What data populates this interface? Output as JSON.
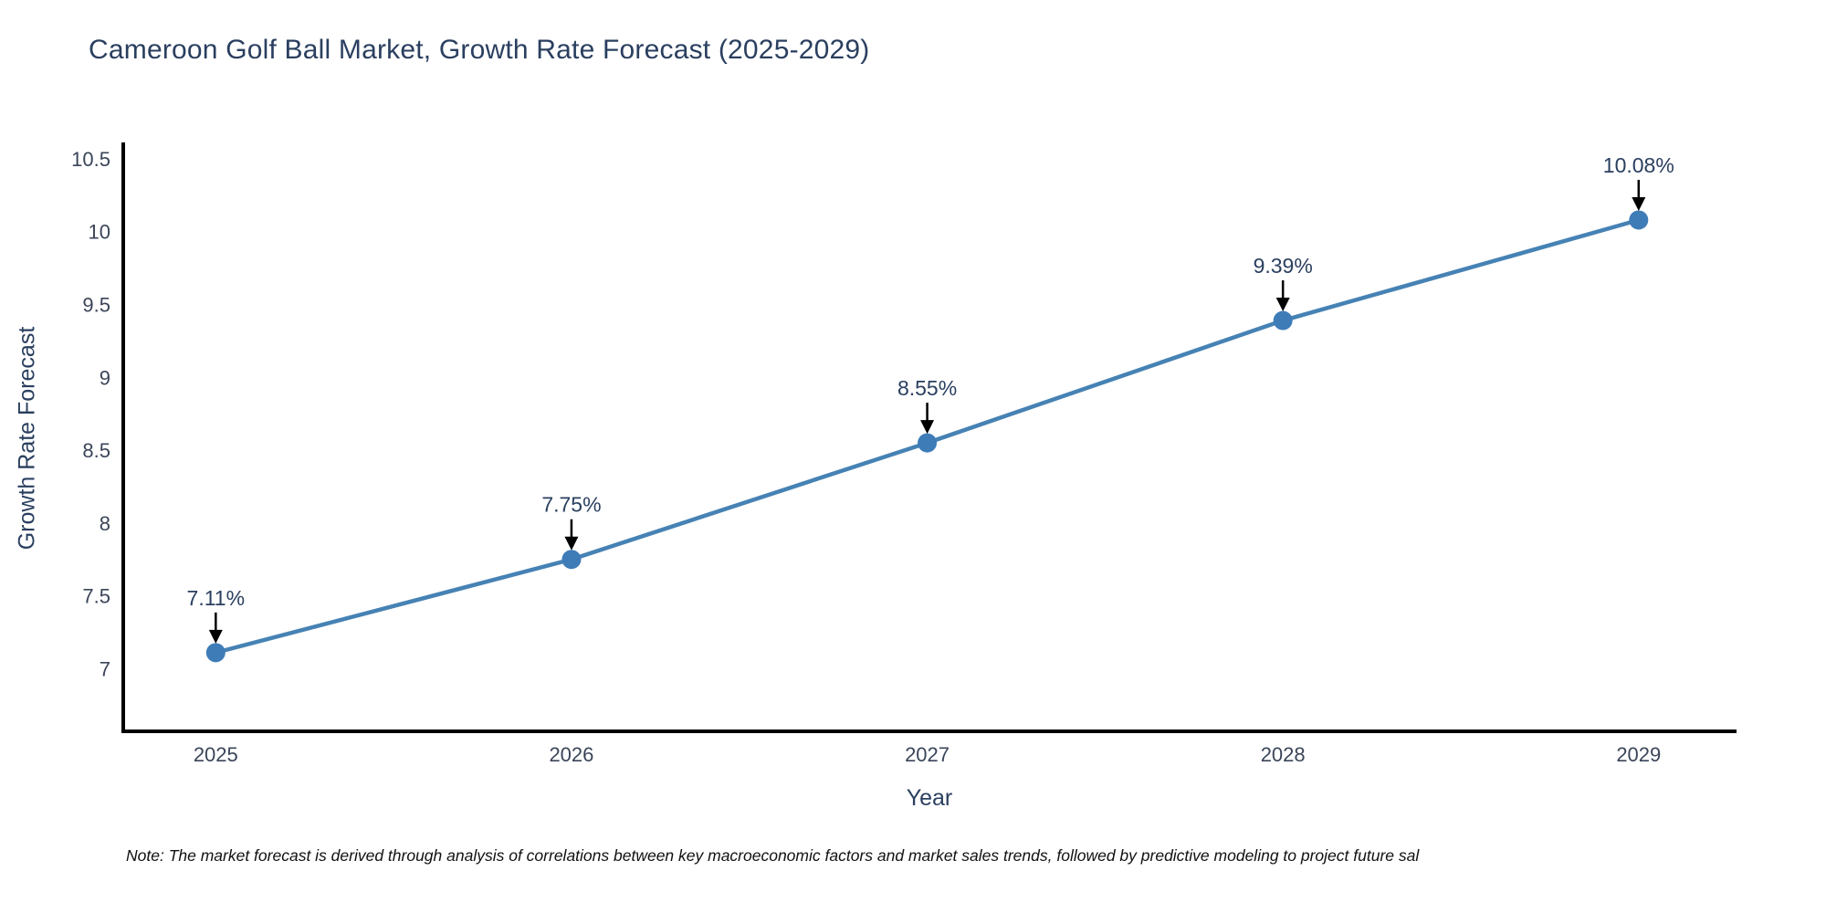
{
  "title": "Cameroon Golf Ball Market, Growth Rate Forecast (2025-2029)",
  "note": "Note: The market forecast is derived through analysis of correlations between key macroeconomic factors and market sales trends, followed by predictive modeling to project future sal",
  "colors": {
    "line": "#4682b4",
    "marker": "#3e7cb8",
    "axis": "#000000",
    "title_text": "#2a3f5f",
    "tick_text": "#3b4559",
    "annotation_text": "#2a3f5f",
    "arrow": "#000000",
    "note_text": "#111111",
    "background": "#ffffff"
  },
  "chart_data": {
    "type": "line",
    "title": "Cameroon Golf Ball Market, Growth Rate Forecast (2025-2029)",
    "xlabel": "Year",
    "ylabel": "Growth Rate Forecast",
    "x": [
      2025,
      2026,
      2027,
      2028,
      2029
    ],
    "x_ticks": [
      "2025",
      "2026",
      "2027",
      "2028",
      "2029"
    ],
    "y_ticks": [
      "7",
      "7.5",
      "8",
      "8.5",
      "9",
      "9.5",
      "10",
      "10.5"
    ],
    "y_tick_values": [
      7,
      7.5,
      8,
      8.5,
      9,
      9.5,
      10,
      10.5
    ],
    "series": [
      {
        "name": "Growth Rate Forecast",
        "values": [
          7.11,
          7.75,
          8.55,
          9.39,
          10.08
        ]
      }
    ],
    "annotations": [
      "7.11%",
      "7.75%",
      "8.55%",
      "9.39%",
      "10.08%"
    ],
    "xlim": [
      2024.74,
      2029.27
    ],
    "ylim": [
      6.57,
      10.6
    ],
    "grid": false,
    "legend": "none",
    "marker": "circle"
  }
}
